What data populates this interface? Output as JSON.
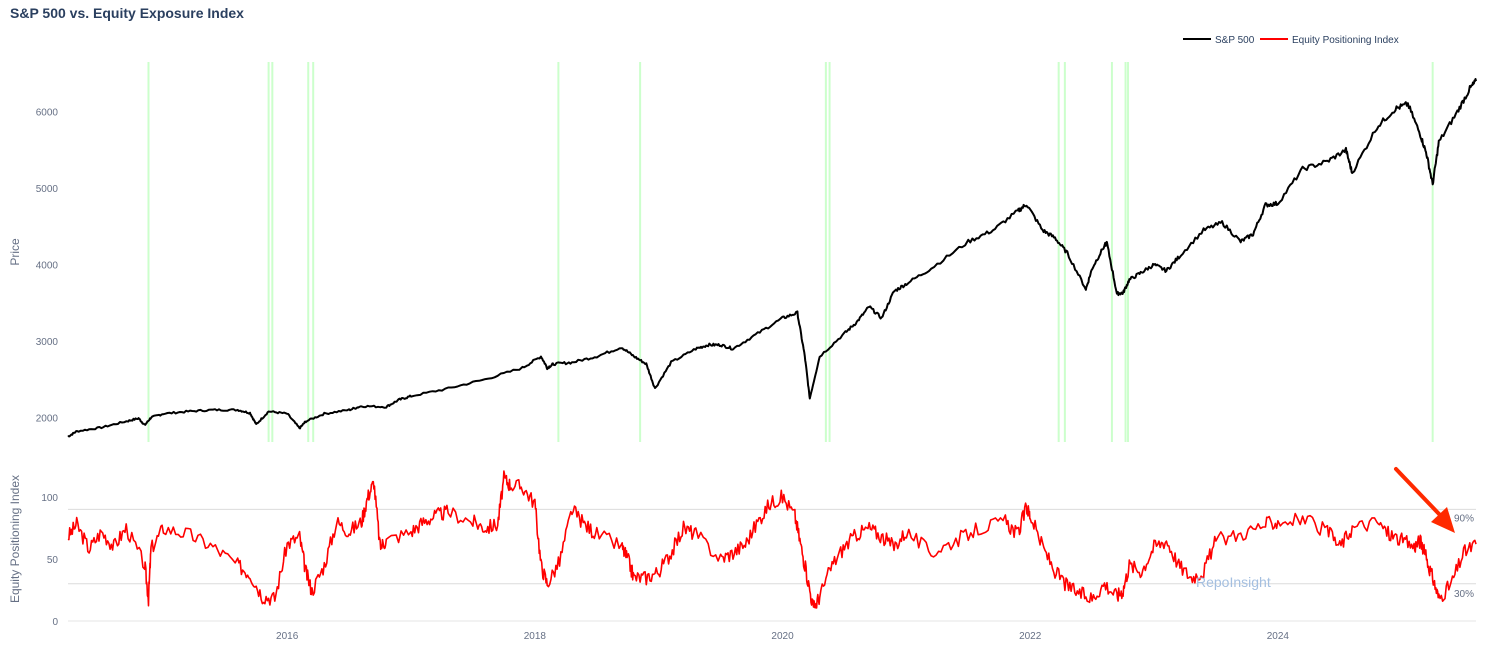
{
  "title": "S&P 500 vs. Equity Exposure Index",
  "watermark": "RepoInsight",
  "colors": {
    "sp500": "#000000",
    "index": "#ff0000",
    "highlight": "#ccffcc",
    "annotation_arrow": "#ff2a00",
    "threshold_line": "#dcdcdc"
  },
  "legend": [
    {
      "label": "S&P 500",
      "color": "#000000"
    },
    {
      "label": "Equity Positioning Index",
      "color": "#ff0000"
    }
  ],
  "chart_data": [
    {
      "type": "line",
      "ylabel": "Price",
      "xlim": [
        2014.23,
        2025.6
      ],
      "ylim": [
        1680,
        6650
      ],
      "y_ticks": [
        2000,
        3000,
        4000,
        5000,
        6000
      ],
      "grid": false,
      "legend_position": "top-right",
      "highlight_dates": [
        2014.88,
        2015.85,
        2015.88,
        2016.17,
        2016.21,
        2018.19,
        2018.85,
        2020.35,
        2020.38,
        2022.23,
        2022.28,
        2022.66,
        2022.77,
        2022.79,
        2025.25
      ],
      "series": [
        {
          "name": "S&P 500",
          "x": [
            2014.23,
            2014.3,
            2014.5,
            2014.7,
            2014.8,
            2014.85,
            2014.9,
            2015.0,
            2015.2,
            2015.4,
            2015.6,
            2015.7,
            2015.75,
            2015.85,
            2016.0,
            2016.1,
            2016.15,
            2016.3,
            2016.5,
            2016.6,
            2016.8,
            2016.9,
            2017.0,
            2017.3,
            2017.6,
            2017.9,
            2018.05,
            2018.1,
            2018.15,
            2018.3,
            2018.5,
            2018.7,
            2018.8,
            2018.9,
            2018.97,
            2019.1,
            2019.3,
            2019.4,
            2019.5,
            2019.6,
            2019.8,
            2020.0,
            2020.12,
            2020.18,
            2020.22,
            2020.3,
            2020.5,
            2020.6,
            2020.7,
            2020.8,
            2020.9,
            2021.0,
            2021.2,
            2021.5,
            2021.7,
            2021.9,
            2021.97,
            2022.1,
            2022.2,
            2022.3,
            2022.45,
            2022.5,
            2022.6,
            2022.62,
            2022.7,
            2022.75,
            2022.8,
            2022.9,
            2023.0,
            2023.1,
            2023.2,
            2023.4,
            2023.55,
            2023.7,
            2023.8,
            2023.9,
            2024.0,
            2024.2,
            2024.4,
            2024.55,
            2024.6,
            2024.8,
            2024.95,
            2025.05,
            2025.15,
            2025.2,
            2025.25,
            2025.3,
            2025.45,
            2025.55,
            2025.6
          ],
          "y": [
            1750,
            1820,
            1870,
            1950,
            1990,
            1900,
            2000,
            2050,
            2080,
            2100,
            2100,
            2060,
            1910,
            2080,
            2050,
            1860,
            1950,
            2050,
            2100,
            2150,
            2140,
            2230,
            2280,
            2380,
            2500,
            2650,
            2800,
            2650,
            2700,
            2720,
            2800,
            2920,
            2800,
            2700,
            2380,
            2720,
            2900,
            2950,
            2950,
            2900,
            3100,
            3300,
            3370,
            2800,
            2250,
            2800,
            3100,
            3250,
            3450,
            3300,
            3650,
            3750,
            3950,
            4300,
            4450,
            4700,
            4790,
            4450,
            4350,
            4150,
            3680,
            3950,
            4250,
            4280,
            3620,
            3630,
            3800,
            3900,
            4000,
            3920,
            4100,
            4450,
            4550,
            4300,
            4400,
            4780,
            4800,
            5250,
            5350,
            5500,
            5200,
            5800,
            6040,
            6100,
            5700,
            5450,
            5050,
            5600,
            6000,
            6300,
            6400
          ]
        }
      ]
    },
    {
      "type": "line",
      "ylabel": "Equity Positioning Index",
      "xlim": [
        2014.23,
        2025.6
      ],
      "ylim": [
        0,
        125
      ],
      "y_ticks": [
        0,
        50,
        100
      ],
      "x_ticks": [
        "2016",
        "2018",
        "2020",
        "2022",
        "2024"
      ],
      "thresholds": [
        {
          "label": "90%",
          "value": 90
        },
        {
          "label": "30%",
          "value": 30
        }
      ],
      "series": [
        {
          "name": "Equity Positioning Index",
          "x": [
            2014.23,
            2014.3,
            2014.4,
            2014.5,
            2014.6,
            2014.7,
            2014.85,
            2014.88,
            2014.9,
            2015.0,
            2015.2,
            2015.4,
            2015.6,
            2015.7,
            2015.8,
            2015.9,
            2016.0,
            2016.1,
            2016.15,
            2016.2,
            2016.3,
            2016.4,
            2016.5,
            2016.6,
            2016.65,
            2016.7,
            2016.75,
            2016.8,
            2017.0,
            2017.1,
            2017.2,
            2017.3,
            2017.5,
            2017.6,
            2017.7,
            2017.75,
            2017.8,
            2017.9,
            2018.0,
            2018.05,
            2018.1,
            2018.2,
            2018.3,
            2018.4,
            2018.5,
            2018.7,
            2018.75,
            2018.8,
            2018.9,
            2019.0,
            2019.1,
            2019.2,
            2019.3,
            2019.5,
            2019.6,
            2019.7,
            2019.8,
            2019.9,
            2020.0,
            2020.1,
            2020.15,
            2020.2,
            2020.25,
            2020.3,
            2020.4,
            2020.5,
            2020.6,
            2020.7,
            2020.8,
            2020.9,
            2021.0,
            2021.2,
            2021.4,
            2021.6,
            2021.8,
            2021.9,
            2021.97,
            2022.0,
            2022.1,
            2022.2,
            2022.3,
            2022.4,
            2022.5,
            2022.6,
            2022.7,
            2022.75,
            2022.8,
            2022.9,
            2023.0,
            2023.1,
            2023.2,
            2023.3,
            2023.4,
            2023.5,
            2023.7,
            2023.9,
            2024.0,
            2024.2,
            2024.4,
            2024.5,
            2024.6,
            2024.8,
            2024.9,
            2025.0,
            2025.1,
            2025.15,
            2025.2,
            2025.25,
            2025.3,
            2025.4,
            2025.5,
            2025.6
          ],
          "y": [
            68,
            78,
            58,
            72,
            60,
            75,
            45,
            18,
            58,
            75,
            70,
            60,
            45,
            38,
            20,
            18,
            62,
            68,
            40,
            24,
            45,
            80,
            72,
            80,
            100,
            112,
            60,
            65,
            72,
            80,
            85,
            88,
            80,
            75,
            78,
            115,
            110,
            108,
            95,
            45,
            30,
            48,
            90,
            78,
            70,
            60,
            50,
            35,
            35,
            40,
            55,
            75,
            70,
            50,
            55,
            62,
            80,
            95,
            100,
            85,
            60,
            35,
            10,
            20,
            45,
            60,
            70,
            75,
            68,
            60,
            72,
            55,
            65,
            75,
            80,
            70,
            92,
            85,
            60,
            40,
            28,
            22,
            18,
            30,
            20,
            25,
            45,
            40,
            60,
            65,
            45,
            35,
            40,
            65,
            70,
            78,
            80,
            82,
            72,
            60,
            75,
            80,
            70,
            65,
            60,
            65,
            50,
            35,
            18,
            30,
            55,
            62
          ]
        }
      ]
    }
  ]
}
